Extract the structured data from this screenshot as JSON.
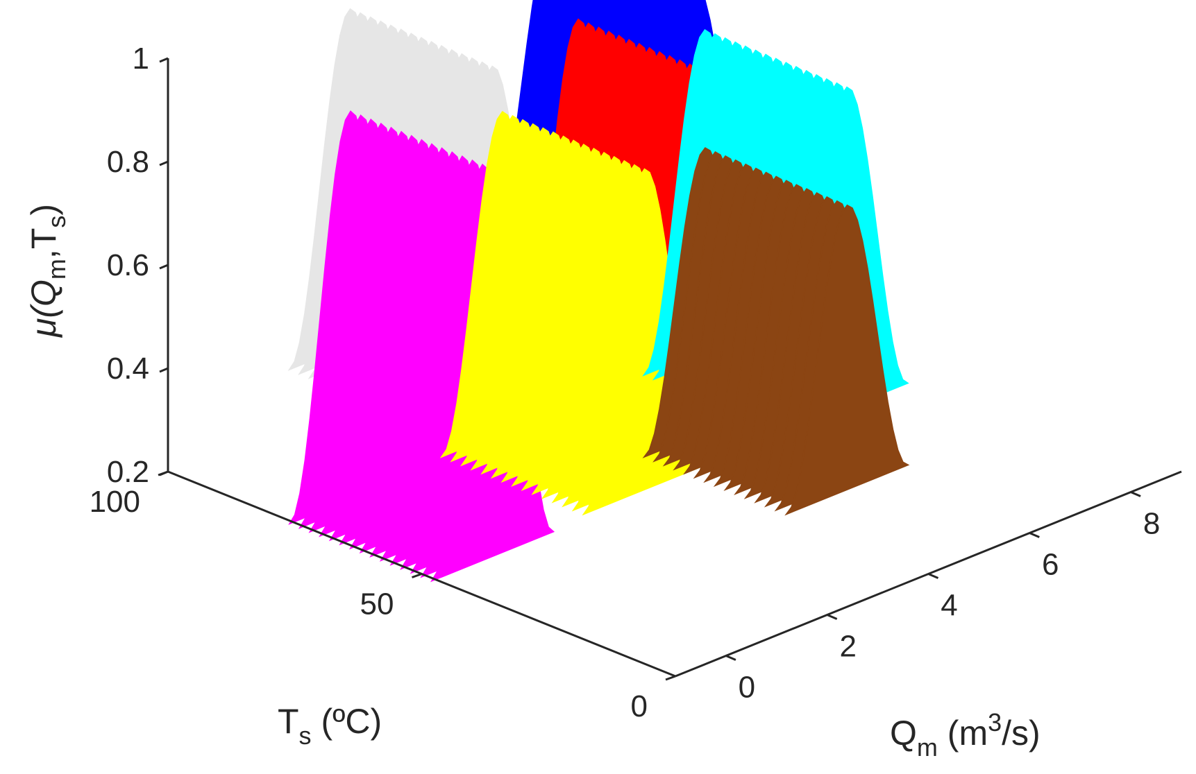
{
  "chart_data": {
    "type": "surface3d",
    "zlabel": {
      "prefix": "μ(Q",
      "sub1": "m",
      "mid": ",T",
      "sub2": "s",
      "suffix": ")"
    },
    "ylabel": {
      "main": "T",
      "sub": "s",
      "rest": " (ºC)"
    },
    "xlabel": {
      "main": "Q",
      "sub": "m",
      "mid": " (m",
      "sup": "3",
      "rest": "/s)"
    },
    "x_ticks": [
      "0",
      "2",
      "4",
      "6",
      "8"
    ],
    "x_tick_values": [
      0,
      2,
      4,
      6,
      8
    ],
    "y_ticks": [
      "0",
      "50",
      "100"
    ],
    "y_tick_values": [
      0,
      50,
      100
    ],
    "z_ticks": [
      "0.2",
      "0.4",
      "0.6",
      "0.8",
      "1"
    ],
    "z_tick_values": [
      0.2,
      0.4,
      0.6,
      0.8,
      1
    ],
    "xlim": [
      -1,
      9
    ],
    "ylim": [
      0,
      100
    ],
    "zlim": [
      0.2,
      1
    ],
    "grid": false,
    "colors": {
      "axis": "#262626",
      "magenta": "#ff00ff",
      "gray": "#e6e6e6",
      "red": "#ff0000",
      "blue": "#0000ff",
      "yellow": "#ffff00",
      "cyan": "#00ffff",
      "brown": "#8b4513"
    },
    "series": [
      {
        "color": "#e6e6e6",
        "q_center": 2,
        "t_center": 80,
        "peak": 1.0,
        "base": 0.35
      },
      {
        "color": "#0000ff",
        "q_center": 6,
        "t_center": 80,
        "peak": 1.0,
        "base": 0.45
      },
      {
        "color": "#ff00ff",
        "q_center": -0.5,
        "t_center": 55,
        "peak": 1.0,
        "base": 0.25
      },
      {
        "color": "#ff0000",
        "q_center": 4,
        "t_center": 55,
        "peak": 1.0,
        "base": 0.3
      },
      {
        "color": "#ffff00",
        "q_center": 2,
        "t_center": 50,
        "peak": 0.92,
        "base": 0.3
      },
      {
        "color": "#00ffff",
        "q_center": 6,
        "t_center": 50,
        "peak": 0.92,
        "base": 0.3
      },
      {
        "color": "#8b4513",
        "q_center": 4,
        "t_center": 30,
        "peak": 0.85,
        "base": 0.3
      }
    ]
  }
}
